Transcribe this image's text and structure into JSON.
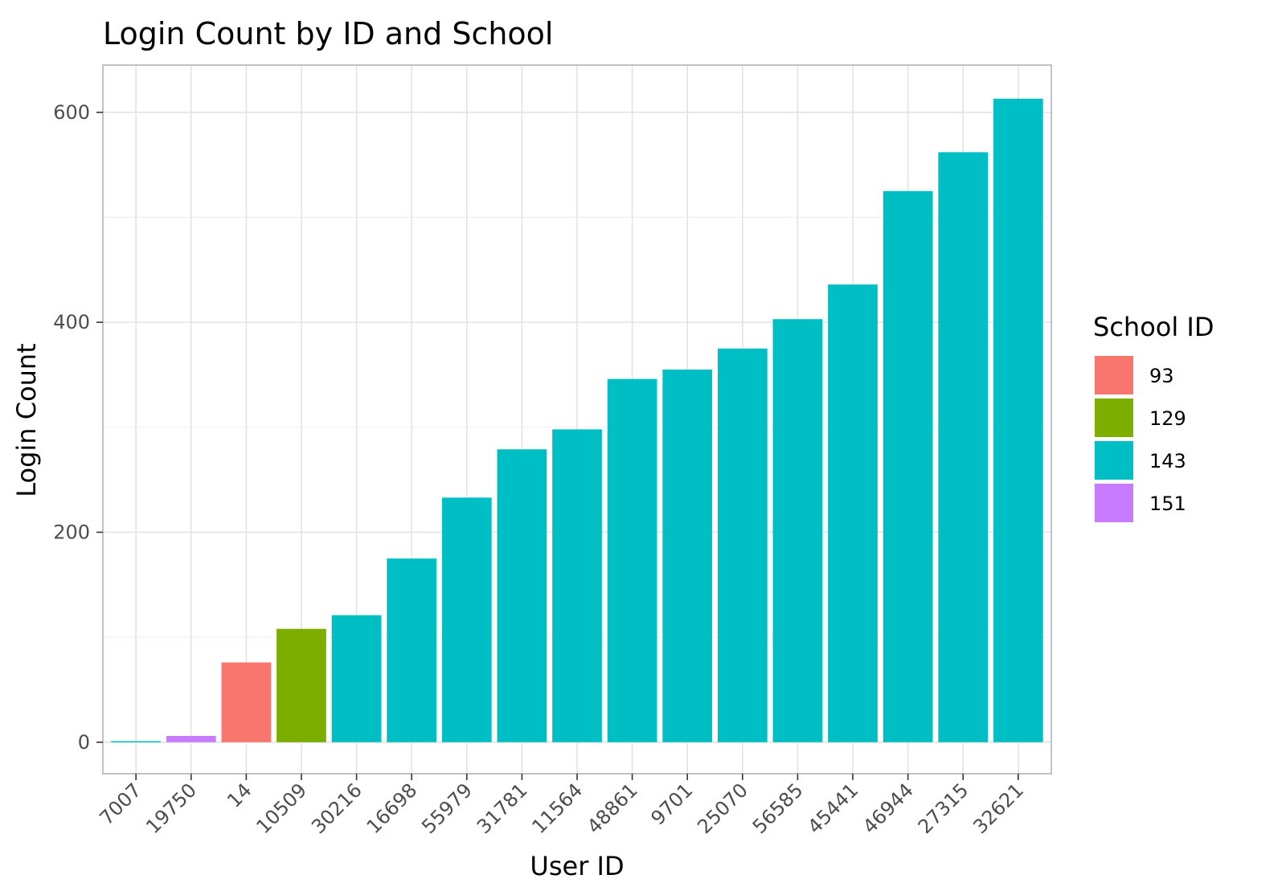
{
  "chart_data": {
    "type": "bar",
    "title": "Login Count by ID and School",
    "xlabel": "User ID",
    "ylabel": "Login Count",
    "ylim": [
      -30,
      645
    ],
    "yticks": [
      0,
      200,
      400,
      600
    ],
    "grid": true,
    "categories": [
      "7007",
      "19750",
      "14",
      "10509",
      "30216",
      "16698",
      "55979",
      "31781",
      "11564",
      "48861",
      "9701",
      "25070",
      "56585",
      "45441",
      "46944",
      "27315",
      "32621"
    ],
    "values": [
      1,
      6,
      76,
      108,
      121,
      175,
      233,
      279,
      298,
      346,
      355,
      375,
      403,
      436,
      525,
      562,
      613
    ],
    "school": [
      "143",
      "151",
      "93",
      "129",
      "143",
      "143",
      "143",
      "143",
      "143",
      "143",
      "143",
      "143",
      "143",
      "143",
      "143",
      "143",
      "143"
    ],
    "legend": {
      "title": "School ID",
      "position": "right",
      "entries": [
        {
          "label": "93",
          "color": "#F8766D"
        },
        {
          "label": "129",
          "color": "#7CAE00"
        },
        {
          "label": "143",
          "color": "#00BFC4"
        },
        {
          "label": "151",
          "color": "#C77CFF"
        }
      ]
    }
  }
}
